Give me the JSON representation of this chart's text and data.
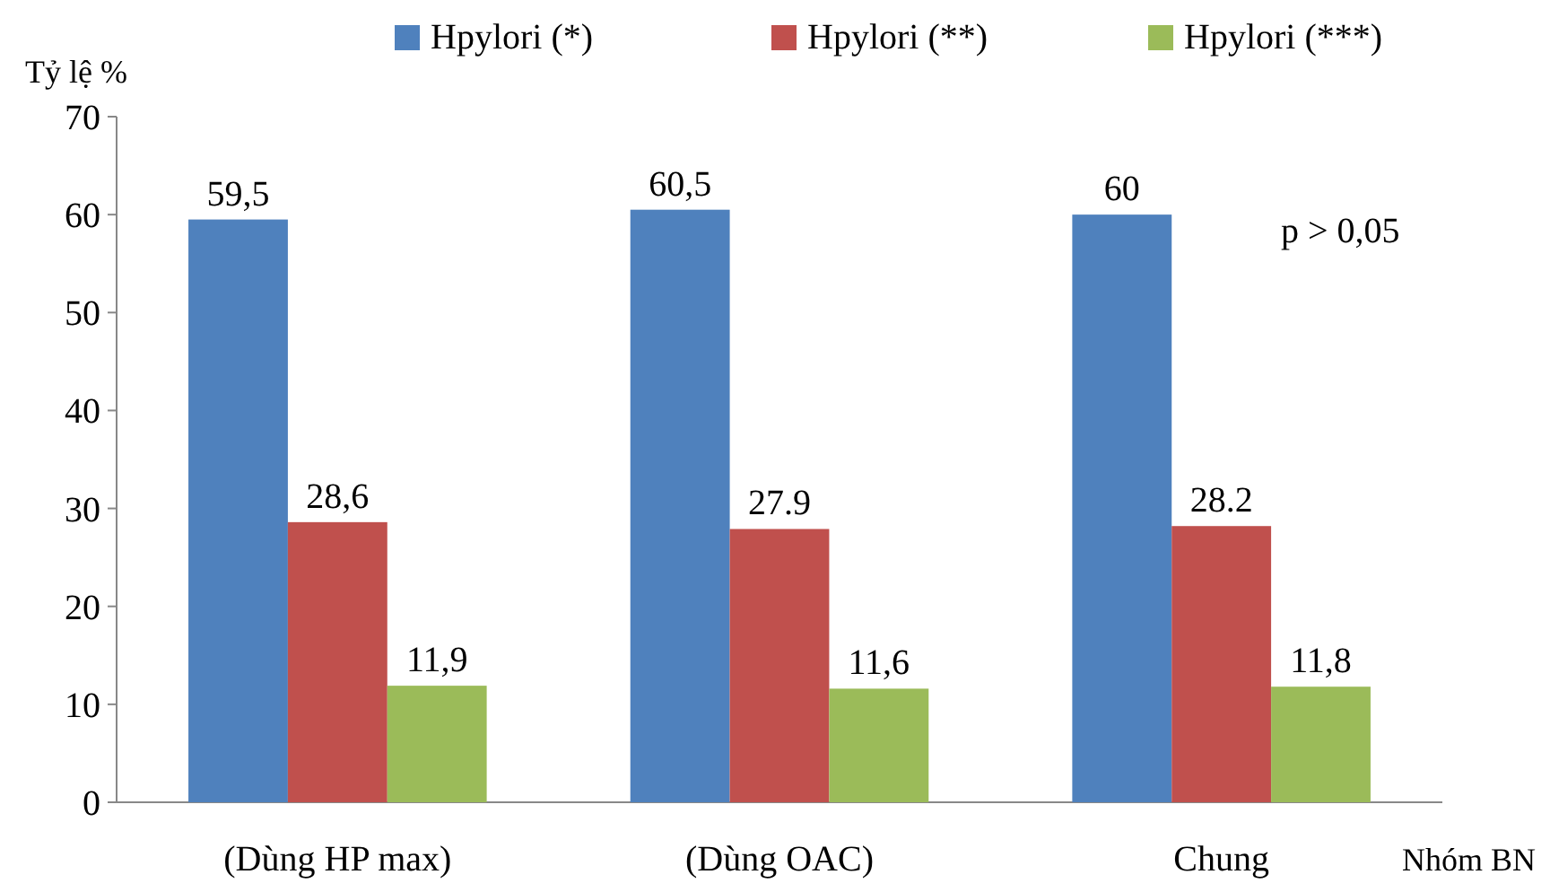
{
  "chart_data": {
    "type": "bar",
    "ylabel": "Tỷ lệ %",
    "xlabel": "Nhóm BN",
    "categories": [
      "(Dùng HP max)",
      "(Dùng OAC)",
      "Chung"
    ],
    "series": [
      {
        "name": "Hpylori (*)",
        "color": "#4f81bd",
        "values": [
          59.5,
          60.5,
          60
        ],
        "value_labels": [
          "59,5",
          "60,5",
          "60"
        ]
      },
      {
        "name": "Hpylori (**)",
        "color": "#c0504d",
        "values": [
          28.6,
          27.9,
          28.2
        ],
        "value_labels": [
          "28,6",
          "27.9",
          "28.2"
        ]
      },
      {
        "name": "Hpylori (***)",
        "color": "#9bbb59",
        "values": [
          11.9,
          11.6,
          11.8
        ],
        "value_labels": [
          "11,9",
          "11,6",
          "11,8"
        ]
      }
    ],
    "ylim": [
      0,
      70
    ],
    "yticks": [
      0,
      10,
      20,
      30,
      40,
      50,
      60,
      70
    ],
    "legend": "top",
    "grid": false,
    "annotations": [
      "p > 0,05"
    ]
  }
}
